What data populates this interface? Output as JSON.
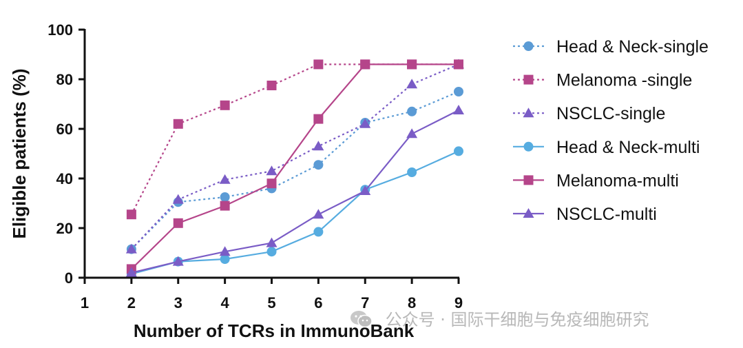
{
  "chart_data": {
    "type": "line",
    "xlabel": "Number of TCRs in ImmunoBank",
    "ylabel": "Eligible patients (%)",
    "xlim": [
      1,
      9
    ],
    "ylim": [
      0,
      100
    ],
    "x_ticks": [
      1,
      2,
      3,
      4,
      5,
      6,
      7,
      8,
      9
    ],
    "y_ticks": [
      0,
      20,
      40,
      60,
      80,
      100
    ],
    "x": [
      2,
      3,
      4,
      5,
      6,
      7,
      8,
      9
    ],
    "grid": false,
    "legend_position": "right",
    "series": [
      {
        "name": "Head & Neck-single",
        "color": "#5b9bd5",
        "marker": "circle",
        "line": "dotted",
        "values": [
          11.5,
          30.5,
          32.5,
          36,
          45.5,
          62.5,
          67,
          75
        ]
      },
      {
        "name": "Melanoma -single",
        "color": "#b5458a",
        "marker": "square",
        "line": "dotted",
        "values": [
          25.5,
          62,
          69.5,
          77.5,
          86,
          86,
          86,
          86
        ]
      },
      {
        "name": "NSCLC-single",
        "color": "#7a5cc6",
        "marker": "triangle",
        "line": "dotted",
        "values": [
          11.5,
          31.5,
          39.5,
          43,
          53,
          62,
          78,
          86
        ]
      },
      {
        "name": "Head & Neck-multi",
        "color": "#56ace0",
        "marker": "circle",
        "line": "solid",
        "values": [
          1.5,
          6.5,
          7.5,
          10.5,
          18.5,
          35.5,
          42.5,
          51
        ]
      },
      {
        "name": "Melanoma-multi",
        "color": "#b5458a",
        "marker": "square",
        "line": "solid",
        "values": [
          3.5,
          22,
          29,
          38,
          64,
          86,
          86,
          86
        ]
      },
      {
        "name": "NSCLC-multi",
        "color": "#7a5cc6",
        "marker": "triangle",
        "line": "solid",
        "values": [
          2,
          6.5,
          10.5,
          14,
          25.5,
          35,
          58,
          67.5
        ]
      }
    ]
  },
  "watermark": {
    "icon": "wechat-icon",
    "text": "公众号 · 国际干细胞与免疫细胞研究"
  }
}
